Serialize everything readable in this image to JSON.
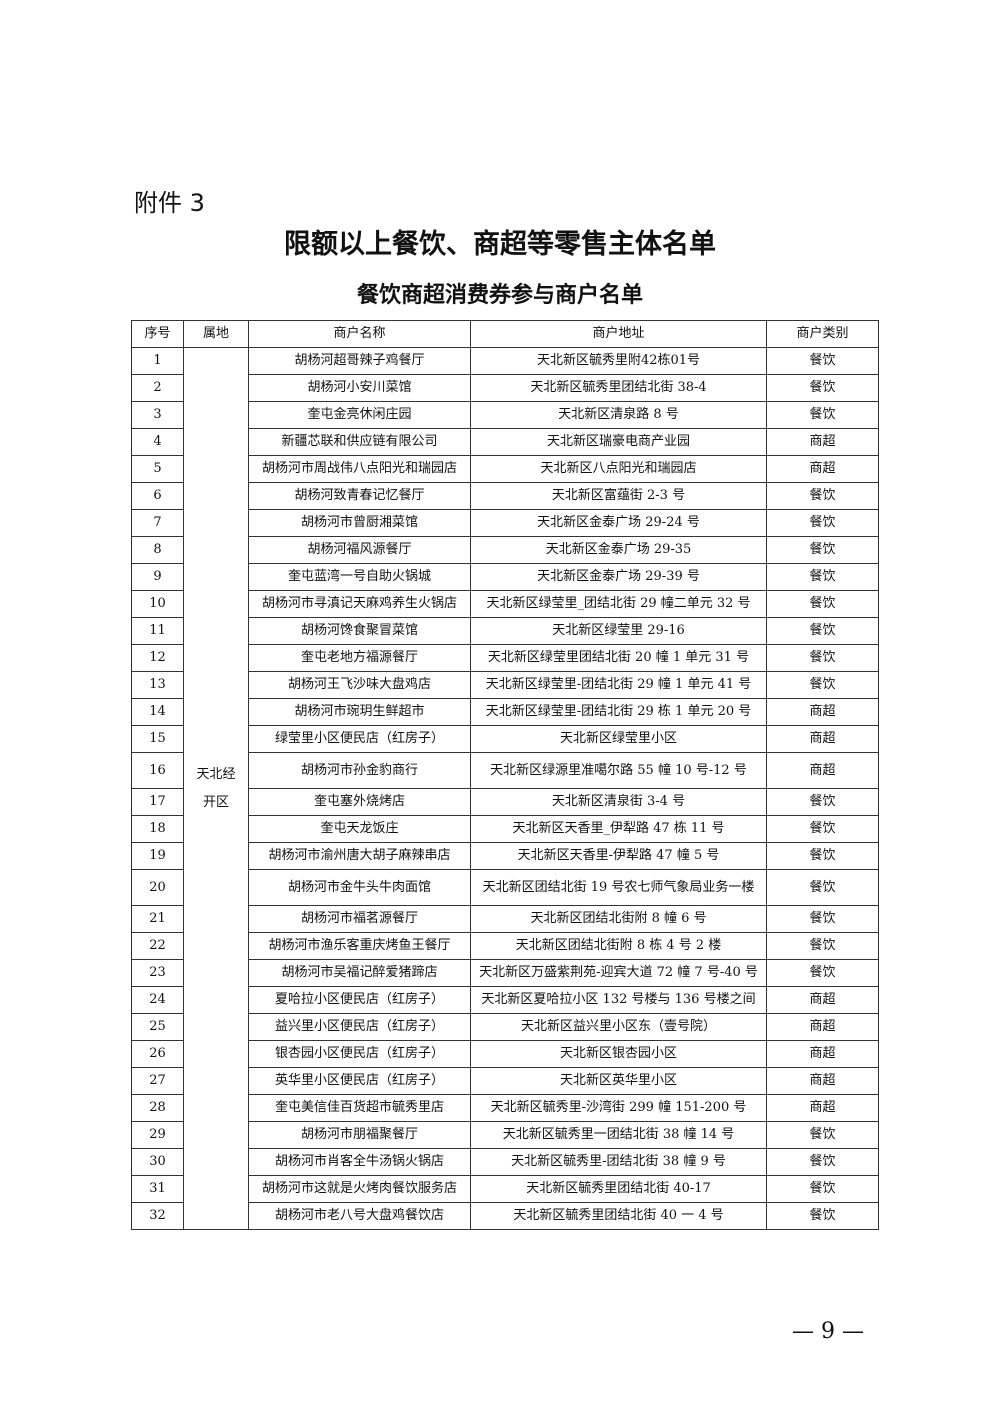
{
  "attachment": "附件 3",
  "title": "限额以上餐饮、商超等零售主体名单",
  "subtitle": "餐饮商超消费券参与商户名单",
  "headers": [
    "序号",
    "属地",
    "商户名称",
    "商户地址",
    "商户类别"
  ],
  "region": "天北经开区",
  "rows": [
    [
      "1",
      "胡杨河超哥辣子鸡餐厅",
      "天北新区毓秀里附42栋01号",
      "餐饮"
    ],
    [
      "2",
      "胡杨河小安川菜馆",
      "天北新区毓秀里团结北街 38-4",
      "餐饮"
    ],
    [
      "3",
      "奎屯金亮休闲庄园",
      "天北新区清泉路 8 号",
      "餐饮"
    ],
    [
      "4",
      "新疆芯联和供应链有限公司",
      "天北新区瑞豪电商产业园",
      "商超"
    ],
    [
      "5",
      "胡杨河市周战伟八点阳光和瑞园店",
      "天北新区八点阳光和瑞园店",
      "商超"
    ],
    [
      "6",
      "胡杨河致青春记忆餐厅",
      "天北新区富蕴街 2-3 号",
      "餐饮"
    ],
    [
      "7",
      "胡杨河市曾厨湘菜馆",
      "天北新区金泰广场 29-24 号",
      "餐饮"
    ],
    [
      "8",
      "胡杨河福风源餐厅",
      "天北新区金泰广场 29-35",
      "餐饮"
    ],
    [
      "9",
      "奎屯蓝湾一号自助火锅城",
      "天北新区金泰广场 29-39 号",
      "餐饮"
    ],
    [
      "10",
      "胡杨河市寻滇记天麻鸡养生火锅店",
      "天北新区绿莹里_团结北街 29 幢二单元 32 号",
      "餐饮"
    ],
    [
      "11",
      "胡杨河馋食聚冒菜馆",
      "天北新区绿莹里 29-16",
      "餐饮"
    ],
    [
      "12",
      "奎屯老地方福源餐厅",
      "天北新区绿莹里团结北街 20 幢 1 单元 31 号",
      "餐饮"
    ],
    [
      "13",
      "胡杨河王飞沙味大盘鸡店",
      "天北新区绿莹里-团结北街 29 幢 1 单元 41 号",
      "餐饮"
    ],
    [
      "14",
      "胡杨河市琬玥生鲜超市",
      "天北新区绿莹里-团结北街 29 栋 1 单元 20 号",
      "商超"
    ],
    [
      "15",
      "绿莹里小区便民店（红房子）",
      "天北新区绿莹里小区",
      "商超"
    ],
    [
      "16",
      "胡杨河市孙金豹商行",
      "天北新区绿源里准噶尔路 55 幢 10 号-12 号",
      "商超"
    ],
    [
      "17",
      "奎屯塞外烧烤店",
      "天北新区清泉街 3-4 号",
      "餐饮"
    ],
    [
      "18",
      "奎屯天龙饭庄",
      "天北新区天香里_伊犁路 47 栋 11 号",
      "餐饮"
    ],
    [
      "19",
      "胡杨河市渝州唐大胡子麻辣串店",
      "天北新区天香里-伊犁路 47 幢 5 号",
      "餐饮"
    ],
    [
      "20",
      "胡杨河市金牛头牛肉面馆",
      "天北新区团结北街 19 号农七师气象局业务一楼",
      "餐饮"
    ],
    [
      "21",
      "胡杨河市福茗源餐厅",
      "天北新区团结北街附 8 幢 6 号",
      "餐饮"
    ],
    [
      "22",
      "胡杨河市渔乐客重庆烤鱼王餐厅",
      "天北新区团结北街附 8 栋 4 号 2 楼",
      "餐饮"
    ],
    [
      "23",
      "胡杨河市吴福记醉爱猪蹄店",
      "天北新区万盛紫荆苑-迎宾大道 72 幢 7 号-40 号",
      "餐饮"
    ],
    [
      "24",
      "夏哈拉小区便民店（红房子）",
      "天北新区夏哈拉小区 132 号楼与 136 号楼之间",
      "商超"
    ],
    [
      "25",
      "益兴里小区便民店（红房子）",
      "天北新区益兴里小区东（壹号院）",
      "商超"
    ],
    [
      "26",
      "银杏园小区便民店（红房子）",
      "天北新区银杏园小区",
      "商超"
    ],
    [
      "27",
      "英华里小区便民店（红房子）",
      "天北新区英华里小区",
      "商超"
    ],
    [
      "28",
      "奎屯美信佳百货超市毓秀里店",
      "天北新区毓秀里-沙湾街 299 幢 151-200 号",
      "商超"
    ],
    [
      "29",
      "胡杨河市朋福聚餐厅",
      "天北新区毓秀里一团结北街 38 幢 14 号",
      "餐饮"
    ],
    [
      "30",
      "胡杨河市肖客全牛汤锅火锅店",
      "天北新区毓秀里-团结北街 38 幢 9 号",
      "餐饮"
    ],
    [
      "31",
      "胡杨河市这就是火烤肉餐饮服务店",
      "天北新区毓秀里团结北街 40-17",
      "餐饮"
    ],
    [
      "32",
      "胡杨河市老八号大盘鸡餐饮店",
      "天北新区毓秀里团结北街 40 一 4 号",
      "餐饮"
    ]
  ],
  "page_number": "— 9 —"
}
